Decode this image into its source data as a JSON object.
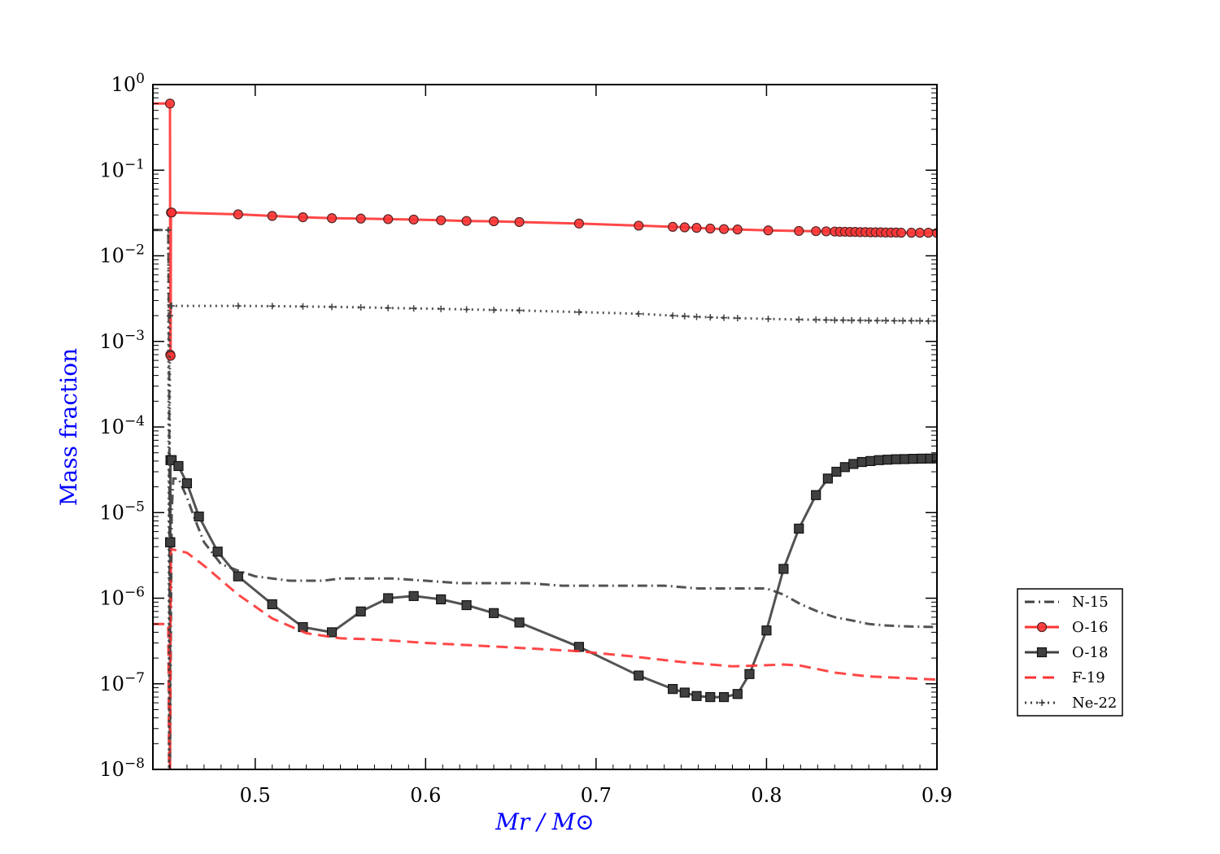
{
  "chart_data": {
    "type": "line",
    "title": "",
    "xlabel": "Mr / M⊙",
    "ylabel": "Mass fraction",
    "xlim": [
      0.44,
      0.9
    ],
    "ylim": [
      1e-08,
      1
    ],
    "yscale": "log",
    "x_ticks": [
      "0.5",
      "0.6",
      "0.7",
      "0.8",
      "0.9"
    ],
    "x_tick_values": [
      0.5,
      0.6,
      0.7,
      0.8,
      0.9
    ],
    "y_ticks": [
      {
        "base": "10",
        "exp": "0",
        "value": 1
      },
      {
        "base": "10",
        "exp": "−1",
        "value": 0.1
      },
      {
        "base": "10",
        "exp": "−2",
        "value": 0.01
      },
      {
        "base": "10",
        "exp": "−3",
        "value": 0.001
      },
      {
        "base": "10",
        "exp": "−4",
        "value": 0.0001
      },
      {
        "base": "10",
        "exp": "−5",
        "value": 1e-05
      },
      {
        "base": "10",
        "exp": "−6",
        "value": 1e-06
      },
      {
        "base": "10",
        "exp": "−7",
        "value": 1e-07
      },
      {
        "base": "10",
        "exp": "−8",
        "value": 1e-08
      }
    ],
    "legend_position": "right",
    "series": [
      {
        "name": "N-15",
        "color": "#404040",
        "style": "dashdot",
        "marker": "none",
        "x": [
          0.44,
          0.449,
          0.4495,
          0.45,
          0.451,
          0.452,
          0.455,
          0.46,
          0.465,
          0.47,
          0.48,
          0.49,
          0.5,
          0.51,
          0.52,
          0.53,
          0.54,
          0.55,
          0.56,
          0.57,
          0.58,
          0.6,
          0.62,
          0.64,
          0.66,
          0.68,
          0.7,
          0.72,
          0.74,
          0.76,
          0.78,
          0.8,
          0.805,
          0.81,
          0.82,
          0.83,
          0.84,
          0.85,
          0.86,
          0.87,
          0.88,
          0.9
        ],
        "y": [
          0.02,
          0.02,
          0.001,
          1e-08,
          1e-05,
          2.5e-05,
          2.5e-05,
          1.5e-05,
          8e-06,
          4.5e-06,
          2.5e-06,
          2.1e-06,
          1.8e-06,
          1.7e-06,
          1.6e-06,
          1.6e-06,
          1.6e-06,
          1.7e-06,
          1.7e-06,
          1.7e-06,
          1.7e-06,
          1.6e-06,
          1.5e-06,
          1.5e-06,
          1.5e-06,
          1.4e-06,
          1.4e-06,
          1.4e-06,
          1.4e-06,
          1.3e-06,
          1.3e-06,
          1.3e-06,
          1.2e-06,
          1.1e-06,
          8.5e-07,
          7e-07,
          6e-07,
          5.5e-07,
          5e-07,
          4.8e-07,
          4.7e-07,
          4.6e-07
        ]
      },
      {
        "name": "O-16",
        "color": "#ff3333",
        "style": "solid",
        "marker": "circle",
        "x": [
          0.44,
          0.45,
          0.4502,
          0.4504,
          0.4506,
          0.451,
          0.49,
          0.51,
          0.528,
          0.545,
          0.562,
          0.578,
          0.593,
          0.609,
          0.624,
          0.64,
          0.655,
          0.69,
          0.725,
          0.745,
          0.752,
          0.759,
          0.767,
          0.775,
          0.783,
          0.801,
          0.819,
          0.829,
          0.835,
          0.84,
          0.843,
          0.846,
          0.849,
          0.852,
          0.855,
          0.858,
          0.861,
          0.864,
          0.867,
          0.87,
          0.873,
          0.876,
          0.879,
          0.885,
          0.89,
          0.895,
          0.9
        ],
        "y": [
          0.6,
          0.6,
          0.0007,
          0.00068,
          0.032,
          0.032,
          0.0305,
          0.0292,
          0.0282,
          0.0275,
          0.0272,
          0.0268,
          0.0265,
          0.026,
          0.0255,
          0.0253,
          0.0248,
          0.0238,
          0.0225,
          0.0218,
          0.0215,
          0.0212,
          0.0208,
          0.0205,
          0.0203,
          0.0198,
          0.0195,
          0.0194,
          0.0193,
          0.0192,
          0.0191,
          0.0191,
          0.019,
          0.019,
          0.0189,
          0.0189,
          0.0188,
          0.0188,
          0.0188,
          0.0187,
          0.0187,
          0.0187,
          0.0186,
          0.0186,
          0.0186,
          0.0186,
          0.0185
        ]
      },
      {
        "name": "O-18",
        "color": "#404040",
        "style": "solid",
        "marker": "square",
        "x": [
          0.45,
          0.4501,
          0.4502,
          0.4503,
          0.451,
          0.455,
          0.46,
          0.467,
          0.478,
          0.49,
          0.51,
          0.528,
          0.545,
          0.562,
          0.578,
          0.593,
          0.609,
          0.624,
          0.64,
          0.655,
          0.69,
          0.725,
          0.745,
          0.752,
          0.759,
          0.767,
          0.775,
          0.783,
          0.79,
          0.8,
          0.81,
          0.819,
          0.829,
          0.836,
          0.841,
          0.846,
          0.851,
          0.856,
          0.861,
          0.866,
          0.871,
          0.876,
          0.881,
          0.886,
          0.891,
          0.896,
          0.9
        ],
        "y": [
          1e-08,
          4.5e-06,
          4.5e-06,
          4.1e-05,
          4.1e-05,
          3.5e-05,
          2.2e-05,
          9e-06,
          3.5e-06,
          1.8e-06,
          8.5e-07,
          4.6e-07,
          4e-07,
          7e-07,
          1e-06,
          1.06e-06,
          9.7e-07,
          8.3e-07,
          6.7e-07,
          5.2e-07,
          2.7e-07,
          1.25e-07,
          8.7e-08,
          7.9e-08,
          7.2e-08,
          7e-08,
          7e-08,
          7.6e-08,
          1.3e-07,
          4.2e-07,
          2.2e-06,
          6.5e-06,
          1.6e-05,
          2.5e-05,
          3e-05,
          3.4e-05,
          3.7e-05,
          3.9e-05,
          4e-05,
          4.1e-05,
          4.15e-05,
          4.2e-05,
          4.22e-05,
          4.25e-05,
          4.27e-05,
          4.28e-05,
          4.3e-05
        ]
      },
      {
        "name": "F-19",
        "color": "#ff3333",
        "style": "dashed",
        "marker": "none",
        "x": [
          0.44,
          0.449,
          0.4495,
          0.45,
          0.4505,
          0.452,
          0.46,
          0.47,
          0.49,
          0.51,
          0.53,
          0.55,
          0.57,
          0.6,
          0.63,
          0.66,
          0.69,
          0.72,
          0.75,
          0.78,
          0.8,
          0.81,
          0.82,
          0.84,
          0.86,
          0.88,
          0.9
        ],
        "y": [
          5e-07,
          5e-07,
          1e-08,
          1e-08,
          3.7e-06,
          3.7e-06,
          3.4e-06,
          2.4e-06,
          1.1e-06,
          5.8e-07,
          3.9e-07,
          3.4e-07,
          3.3e-07,
          3e-07,
          2.8e-07,
          2.6e-07,
          2.4e-07,
          2.1e-07,
          1.8e-07,
          1.6e-07,
          1.65e-07,
          1.68e-07,
          1.63e-07,
          1.35e-07,
          1.22e-07,
          1.17e-07,
          1.12e-07
        ]
      },
      {
        "name": "Ne-22",
        "color": "#404040",
        "style": "dotted",
        "marker": "plus",
        "x": [
          0.449,
          0.4495,
          0.45,
          0.4505,
          0.451,
          0.49,
          0.51,
          0.528,
          0.545,
          0.562,
          0.578,
          0.593,
          0.609,
          0.624,
          0.64,
          0.655,
          0.69,
          0.725,
          0.745,
          0.752,
          0.759,
          0.767,
          0.775,
          0.783,
          0.801,
          0.819,
          0.829,
          0.835,
          0.84,
          0.845,
          0.85,
          0.855,
          0.86,
          0.865,
          0.87,
          0.875,
          0.88,
          0.885,
          0.89,
          0.895,
          0.9
        ],
        "y": [
          0.02,
          1e-08,
          0.002,
          0.0026,
          0.0026,
          0.0026,
          0.00258,
          0.00256,
          0.00253,
          0.0025,
          0.00246,
          0.00243,
          0.0024,
          0.00236,
          0.00233,
          0.0023,
          0.0022,
          0.0021,
          0.002,
          0.00197,
          0.00194,
          0.00191,
          0.00189,
          0.00187,
          0.00183,
          0.0018,
          0.00179,
          0.00178,
          0.00177,
          0.00177,
          0.00176,
          0.00176,
          0.00175,
          0.00175,
          0.00175,
          0.00174,
          0.00174,
          0.00174,
          0.00174,
          0.00173,
          0.00173
        ]
      }
    ]
  }
}
